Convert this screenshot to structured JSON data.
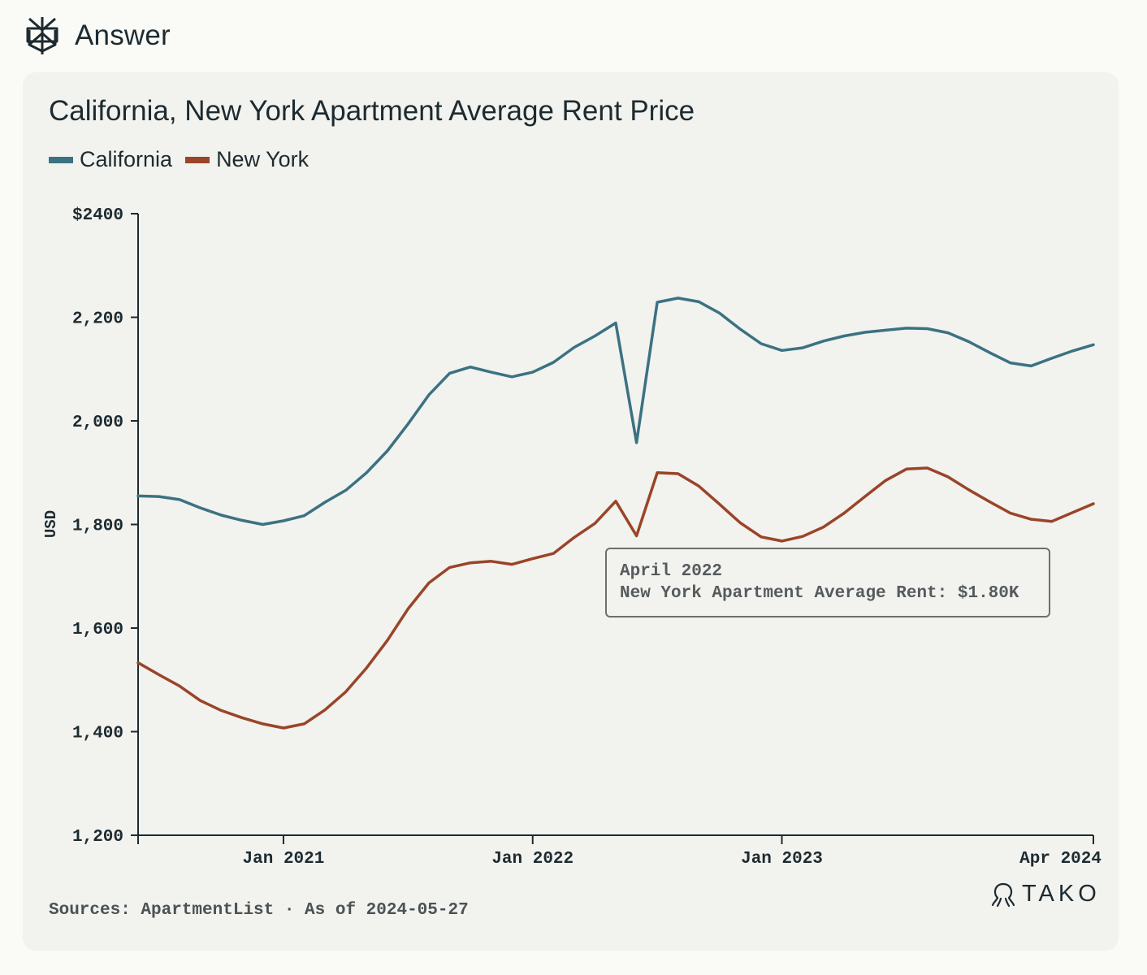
{
  "header": {
    "title": "Answer",
    "icon": "perplexity-logo-icon"
  },
  "card": {
    "sources_label": "Sources: ApartmentList · As of 2024-05-27",
    "brand": {
      "name": "TAKO",
      "icon": "tako-logo-icon"
    }
  },
  "tooltip": {
    "date": "April 2022",
    "text": "New York Apartment Average Rent: $1.80K"
  },
  "colors": {
    "california": "#3b7282",
    "new_york": "#9a4428"
  },
  "chart_data": {
    "type": "line",
    "title": "California, New York Apartment Average Rent Price",
    "xlabel": "",
    "ylabel": "USD",
    "ylim": [
      1200,
      2400
    ],
    "y_ticks": [
      1200,
      1400,
      1600,
      1800,
      2000,
      2200,
      2400
    ],
    "y_tick_labels": [
      "1,200",
      "1,400",
      "1,600",
      "1,800",
      "2,000",
      "2,200",
      "$2400"
    ],
    "x_ticks": [
      {
        "index": 7,
        "label": "Jan 2021"
      },
      {
        "index": 19,
        "label": "Jan 2022"
      },
      {
        "index": 31,
        "label": "Jan 2023"
      },
      {
        "index": 46,
        "label": "Apr 2024"
      }
    ],
    "x": [
      "2020-06",
      "2020-07",
      "2020-08",
      "2020-09",
      "2020-10",
      "2020-11",
      "2020-12",
      "2021-01",
      "2021-02",
      "2021-03",
      "2021-04",
      "2021-05",
      "2021-06",
      "2021-07",
      "2021-08",
      "2021-09",
      "2021-10",
      "2021-11",
      "2021-12",
      "2022-01",
      "2022-02",
      "2022-03",
      "2022-04",
      "2022-05",
      "2022-06",
      "2022-07",
      "2022-08",
      "2022-09",
      "2022-10",
      "2022-11",
      "2022-12",
      "2023-01",
      "2023-02",
      "2023-03",
      "2023-04",
      "2023-05",
      "2023-06",
      "2023-07",
      "2023-08",
      "2023-09",
      "2023-10",
      "2023-11",
      "2023-12",
      "2024-01",
      "2024-02",
      "2024-03",
      "2024-04"
    ],
    "series": [
      {
        "name": "California",
        "values": [
          1855,
          1854,
          1848,
          1832,
          1818,
          1808,
          1800,
          1807,
          1817,
          1843,
          1866,
          1900,
          1942,
          1994,
          2050,
          2092,
          2104,
          2094,
          2085,
          2094,
          2113,
          2142,
          2164,
          2189,
          1958,
          2229,
          2237,
          2230,
          2208,
          2177,
          2149,
          2136,
          2141,
          2154,
          2164,
          2171,
          2175,
          2179,
          2178,
          2170,
          2153,
          2132,
          2112,
          2106,
          2121,
          2135,
          2147
        ]
      },
      {
        "name": "New York",
        "values": [
          1533,
          1510,
          1488,
          1460,
          1441,
          1427,
          1415,
          1407,
          1415,
          1442,
          1477,
          1523,
          1576,
          1637,
          1687,
          1717,
          1726,
          1729,
          1723,
          1734,
          1744,
          1775,
          1802,
          1845,
          1778,
          1900,
          1898,
          1874,
          1839,
          1803,
          1776,
          1768,
          1777,
          1795,
          1822,
          1854,
          1885,
          1907,
          1909,
          1892,
          1867,
          1844,
          1822,
          1810,
          1806,
          1823,
          1840
        ]
      }
    ]
  }
}
